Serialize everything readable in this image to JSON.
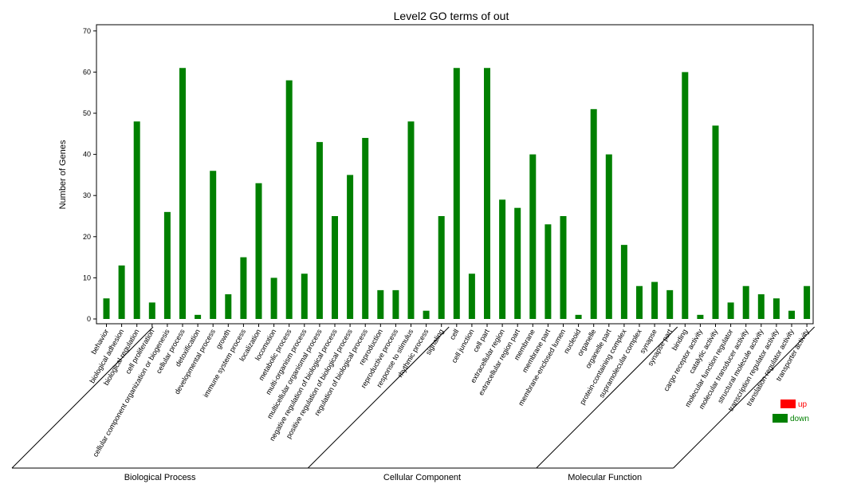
{
  "chart_data": {
    "type": "bar",
    "title": "Level2 GO terms of out",
    "ylabel": "Number of Genes",
    "ylim": [
      0,
      72
    ],
    "yticks": [
      0,
      10,
      20,
      30,
      40,
      50,
      60,
      70
    ],
    "grid": false,
    "legend_position": "bottom-right",
    "series": [
      {
        "name": "up",
        "color": "#ff0000"
      },
      {
        "name": "down",
        "color": "#008000"
      }
    ],
    "categories": [
      "behavior",
      "biological adhesion",
      "biological regulation",
      "cell proliferation",
      "cellular component organization or biogenesis",
      "cellular process",
      "detoxification",
      "developmental process",
      "growth",
      "immune system process",
      "localization",
      "locomotion",
      "metabolic process",
      "multi-organism process",
      "multicellular organismal process",
      "negative regulation of biological process",
      "positive regulation of biological process",
      "regulation of biological process",
      "reproduction",
      "reproductive process",
      "response to stimulus",
      "rhythmic process",
      "signaling",
      "cell",
      "cell junction",
      "cell part",
      "extracellular region",
      "extracellular region part",
      "membrane",
      "membrane part",
      "membrane-enclosed lumen",
      "nucleoid",
      "organelle",
      "organelle part",
      "protein-containing complex",
      "supramolecular complex",
      "synapse",
      "synapse part",
      "binding",
      "cargo receptor activity",
      "catalytic activity",
      "molecular function regulator",
      "molecular transducer activity",
      "structural molecule activity",
      "transcription regulator activity",
      "translation regulator activity",
      "transporter activity"
    ],
    "values": {
      "down": [
        5,
        13,
        48,
        4,
        26,
        61,
        1,
        36,
        6,
        15,
        33,
        10,
        58,
        11,
        43,
        25,
        35,
        44,
        7,
        7,
        48,
        2,
        25,
        61,
        11,
        61,
        29,
        27,
        40,
        23,
        25,
        1,
        51,
        40,
        18,
        8,
        9,
        7,
        60,
        1,
        47,
        4,
        8,
        6,
        5,
        2,
        8
      ]
    },
    "groups": [
      {
        "name": "Biological Process",
        "count": 23
      },
      {
        "name": "Cellular Component",
        "count": 15
      },
      {
        "name": "Molecular Function",
        "count": 9
      }
    ]
  }
}
